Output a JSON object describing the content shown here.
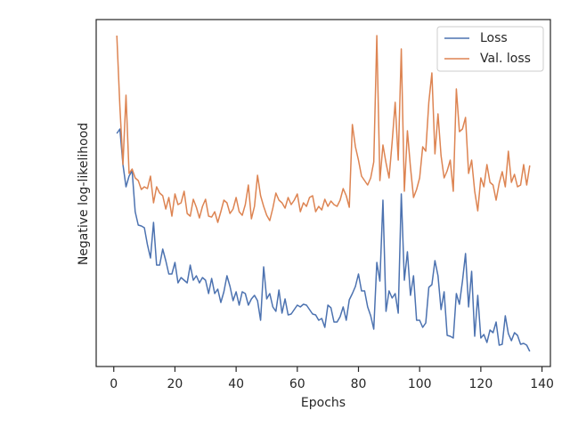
{
  "chart_data": {
    "type": "line",
    "xlabel": "Epochs",
    "ylabel": "Negative log-likelihood",
    "x": [
      1,
      2,
      3,
      4,
      5,
      6,
      7,
      8,
      9,
      10,
      11,
      12,
      13,
      14,
      15,
      16,
      17,
      18,
      19,
      20,
      21,
      22,
      23,
      24,
      25,
      26,
      27,
      28,
      29,
      30,
      31,
      32,
      33,
      34,
      35,
      36,
      37,
      38,
      39,
      40,
      41,
      42,
      43,
      44,
      45,
      46,
      47,
      48,
      49,
      50,
      51,
      52,
      53,
      54,
      55,
      56,
      57,
      58,
      59,
      60,
      61,
      62,
      63,
      64,
      65,
      66,
      67,
      68,
      69,
      70,
      71,
      72,
      73,
      74,
      75,
      76,
      77,
      78,
      79,
      80,
      81,
      82,
      83,
      84,
      85,
      86,
      87,
      88,
      89,
      90,
      91,
      92,
      93,
      94,
      95,
      96,
      97,
      98,
      99,
      100,
      101,
      102,
      103,
      104,
      105,
      106,
      107,
      108,
      109,
      110,
      111,
      112,
      113,
      114,
      115,
      116,
      117,
      118,
      119,
      120,
      121,
      122,
      123,
      124,
      125,
      126,
      127,
      128,
      129,
      130,
      131,
      132,
      133,
      134,
      135,
      136
    ],
    "series": [
      {
        "name": "Loss",
        "color": "#4c72b0",
        "values": [
          262,
          267,
          227,
          202,
          214,
          220,
          174,
          159,
          158,
          156,
          137,
          122,
          162,
          114,
          114,
          132,
          119,
          104,
          104,
          117,
          94,
          100,
          97,
          94,
          114,
          97,
          102,
          94,
          100,
          97,
          82,
          99,
          82,
          87,
          72,
          84,
          102,
          90,
          74,
          84,
          69,
          84,
          82,
          69,
          76,
          80,
          74,
          52,
          112,
          76,
          82,
          67,
          62,
          86,
          60,
          76,
          58,
          59,
          64,
          69,
          67,
          70,
          69,
          64,
          59,
          58,
          52,
          54,
          44,
          69,
          66,
          50,
          50,
          56,
          67,
          52,
          75,
          82,
          90,
          104,
          85,
          85,
          67,
          57,
          42,
          117,
          96,
          187,
          62,
          85,
          77,
          82,
          60,
          194,
          97,
          129,
          80,
          102,
          52,
          52,
          44,
          49,
          89,
          92,
          119,
          102,
          64,
          84,
          35,
          34,
          32,
          82,
          70,
          96,
          127,
          67,
          107,
          34,
          80,
          32,
          36,
          27,
          41,
          38,
          50,
          24,
          25,
          57,
          37,
          29,
          38,
          35,
          25,
          26,
          24,
          17
        ]
      },
      {
        "name": "Val. loss",
        "color": "#dd8452",
        "values": [
          372,
          292,
          227,
          305,
          217,
          222,
          212,
          209,
          199,
          202,
          200,
          214,
          184,
          202,
          195,
          192,
          177,
          190,
          169,
          194,
          182,
          184,
          197,
          172,
          169,
          188,
          179,
          167,
          180,
          188,
          169,
          168,
          174,
          162,
          174,
          187,
          184,
          172,
          177,
          190,
          174,
          170,
          182,
          204,
          166,
          180,
          215,
          192,
          180,
          170,
          164,
          178,
          195,
          187,
          184,
          178,
          190,
          182,
          187,
          194,
          174,
          184,
          180,
          190,
          192,
          174,
          180,
          176,
          188,
          180,
          186,
          182,
          180,
          187,
          200,
          192,
          179,
          272,
          247,
          232,
          214,
          209,
          204,
          212,
          230,
          372,
          209,
          249,
          229,
          212,
          252,
          297,
          232,
          357,
          197,
          265,
          224,
          190,
          199,
          212,
          247,
          242,
          297,
          330,
          239,
          284,
          237,
          212,
          220,
          232,
          197,
          312,
          264,
          267,
          280,
          217,
          232,
          197,
          175,
          212,
          202,
          227,
          207,
          204,
          187,
          206,
          219,
          202,
          242,
          207,
          216,
          202,
          204,
          227,
          204,
          226
        ]
      }
    ],
    "xlim": [
      -5.75,
      142.75
    ],
    "xticks": [
      0,
      20,
      40,
      60,
      80,
      100,
      120,
      140
    ],
    "ylim": [
      0,
      390
    ],
    "legend": "upper right"
  }
}
